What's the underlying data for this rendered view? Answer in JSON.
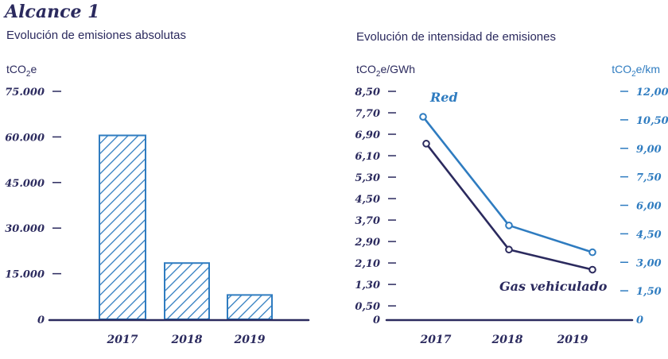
{
  "page": {
    "heading": "Alcance 1",
    "colors": {
      "navy": "#2b2a5e",
      "blue": "#2f7cc0"
    }
  },
  "chart_data": [
    {
      "type": "bar",
      "title": "Evolución de emisiones absolutas",
      "ylabel": "tCO2e",
      "ylabel_main": "tCO",
      "ylabel_sub": "2",
      "ylabel_tail": "e",
      "categories": [
        "2017",
        "2018",
        "2019"
      ],
      "values": [
        60500,
        18500,
        8000
      ],
      "ylim": [
        0,
        75000
      ],
      "yticks": [
        0,
        15000,
        30000,
        45000,
        60000,
        75000
      ],
      "ytick_labels": [
        "0",
        "15.000",
        "30.000",
        "45.000",
        "60.000",
        "75.000"
      ],
      "fill": "hatched"
    },
    {
      "type": "line",
      "title": "Evolución de intensidad de emisiones",
      "categories": [
        "2017",
        "2018",
        "2019"
      ],
      "left_axis": {
        "label": "tCO2e/GWh",
        "label_main": "tCO",
        "label_sub": "2",
        "label_tail": "e/GWh",
        "ylim": [
          0,
          8.5
        ],
        "ticks": [
          0,
          0.5,
          1.3,
          2.1,
          2.9,
          3.7,
          4.5,
          5.3,
          6.1,
          6.9,
          7.7,
          8.5
        ],
        "tick_labels": [
          "0",
          "0,50",
          "1,30",
          "2,10",
          "2,90",
          "3,70",
          "4,50",
          "5,30",
          "6,10",
          "6,90",
          "7,70",
          "8,50"
        ]
      },
      "right_axis": {
        "label": "tCO2e/km",
        "label_main": "tCO",
        "label_sub": "2",
        "label_tail": "e/km",
        "ylim": [
          0,
          12
        ],
        "ticks": [
          0,
          1.5,
          3,
          4.5,
          6,
          7.5,
          9,
          10.5,
          12
        ],
        "tick_labels": [
          "0",
          "1,50",
          "3,00",
          "4,50",
          "6,00",
          "7,50",
          "9,00",
          "10,50",
          "12,00"
        ]
      },
      "series": [
        {
          "name": "Red",
          "axis": "left",
          "values": [
            7.55,
            3.5,
            2.5
          ],
          "color": "#2f7cc0"
        },
        {
          "name": "Gas vehiculado",
          "axis": "left",
          "values": [
            6.55,
            2.6,
            1.85
          ],
          "color": "#2b2a5e"
        }
      ]
    }
  ]
}
